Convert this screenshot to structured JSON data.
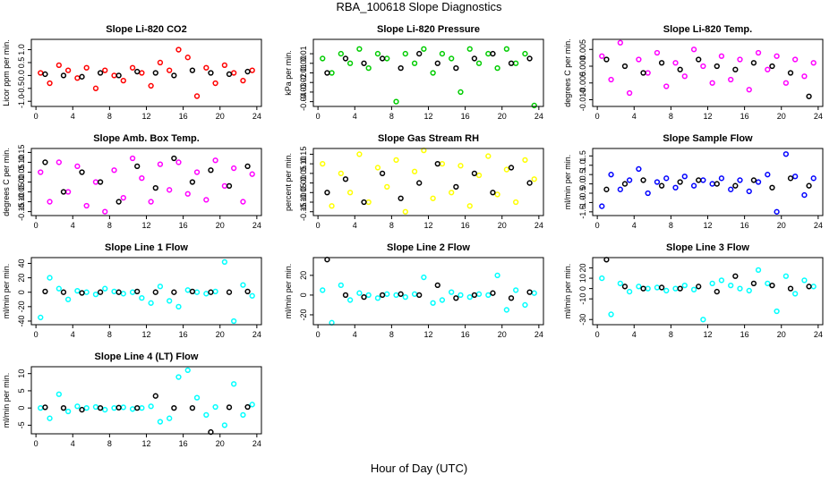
{
  "page": {
    "title": "RBA_100618  Slope Diagnostics",
    "xlabel": "Hour of Day (UTC)"
  },
  "chart_data": [
    {
      "type": "scatter",
      "title": "Slope Li-820 CO2",
      "ylabel": "Licor ppm per min.",
      "xlim": [
        -0.5,
        24.5
      ],
      "xticks": [
        0,
        4,
        8,
        12,
        16,
        20,
        24
      ],
      "ylim": [
        -1.2,
        1.4
      ],
      "yticks": [
        {
          "value": -1,
          "label": "-1.0"
        },
        -0.5,
        {
          "value": 0,
          "label": "0.0"
        },
        0.5,
        {
          "value": 1,
          "label": "1.0"
        }
      ],
      "series": [
        {
          "color": "#ff0000",
          "x": [
            0.5,
            1.5,
            2.5,
            3.5,
            4.5,
            5.5,
            6.5,
            7.5,
            8.5,
            9.5,
            10.5,
            11.5,
            12.5,
            13.5,
            14.5,
            15.5,
            16.5,
            17.5,
            18.5,
            19.5,
            20.5,
            21.5,
            22.5,
            23.5
          ],
          "values": [
            0.1,
            -0.3,
            0.4,
            0.2,
            -0.1,
            0.3,
            -0.5,
            0.2,
            0.0,
            -0.2,
            0.3,
            0.1,
            -0.4,
            0.5,
            0.2,
            1.0,
            0.7,
            -0.8,
            0.3,
            -0.3,
            0.4,
            0.1,
            -0.2,
            0.2
          ]
        },
        {
          "color": "#000000",
          "x": [
            1,
            3,
            5,
            7,
            9,
            11,
            13,
            15,
            17,
            19,
            21,
            23
          ],
          "values": [
            0.05,
            0.0,
            -0.05,
            0.1,
            0.0,
            0.15,
            0.1,
            0.0,
            0.2,
            0.1,
            0.05,
            0.15
          ]
        }
      ]
    },
    {
      "type": "scatter",
      "title": "Slope Li-820 Pressure",
      "ylabel": "kPa per min.",
      "xlim": [
        -0.5,
        24.5
      ],
      "xticks": [
        0,
        4,
        8,
        12,
        16,
        20,
        24
      ],
      "ylim": [
        -0.045,
        0.025
      ],
      "yticks": [
        -0.04,
        -0.03,
        -0.02,
        -0.01,
        {
          "value": 0,
          "label": "0.00"
        },
        0.01
      ],
      "series": [
        {
          "color": "#00cc00",
          "x": [
            0.5,
            1.5,
            2.5,
            3.5,
            4.5,
            5.5,
            6.5,
            7.5,
            8.5,
            9.5,
            10.5,
            11.5,
            12.5,
            13.5,
            14.5,
            15.5,
            16.5,
            17.5,
            18.5,
            19.5,
            20.5,
            21.5,
            22.5,
            23.5
          ],
          "values": [
            0.005,
            -0.01,
            0.01,
            0.0,
            0.015,
            -0.005,
            0.01,
            0.005,
            -0.04,
            0.01,
            0.0,
            0.015,
            -0.01,
            0.01,
            0.005,
            -0.03,
            0.015,
            0.0,
            0.01,
            -0.005,
            0.015,
            0.0,
            0.01,
            -0.044
          ]
        },
        {
          "color": "#000000",
          "x": [
            1,
            3,
            5,
            7,
            9,
            11,
            13,
            15,
            17,
            19,
            21,
            23
          ],
          "values": [
            -0.01,
            0.005,
            0.0,
            0.005,
            -0.005,
            0.01,
            0.0,
            -0.005,
            0.005,
            0.01,
            0.0,
            0.005
          ]
        }
      ]
    },
    {
      "type": "scatter",
      "title": "Slope Li-820 Temp.",
      "ylabel": "degrees C per min.",
      "xlim": [
        -0.5,
        24.5
      ],
      "xticks": [
        0,
        4,
        8,
        12,
        16,
        20,
        24
      ],
      "ylim": [
        -0.012,
        0.008
      ],
      "yticks": [
        {
          "value": -0.01,
          "label": "-0.010"
        },
        -0.005,
        {
          "value": 0,
          "label": "0.000"
        },
        0.005
      ],
      "series": [
        {
          "color": "#ff00ff",
          "x": [
            0.5,
            1.5,
            2.5,
            3.5,
            4.5,
            5.5,
            6.5,
            7.5,
            8.5,
            9.5,
            10.5,
            11.5,
            12.5,
            13.5,
            14.5,
            15.5,
            16.5,
            17.5,
            18.5,
            19.5,
            20.5,
            21.5,
            22.5,
            23.5
          ],
          "values": [
            0.003,
            -0.004,
            0.007,
            -0.008,
            0.002,
            -0.002,
            0.004,
            -0.006,
            0.001,
            -0.003,
            0.005,
            0.0,
            -0.005,
            0.003,
            -0.004,
            0.002,
            -0.007,
            0.004,
            -0.001,
            0.003,
            -0.005,
            0.002,
            -0.003,
            0.001
          ]
        },
        {
          "color": "#000000",
          "x": [
            1,
            3,
            5,
            7,
            9,
            11,
            13,
            15,
            17,
            19,
            21,
            23
          ],
          "values": [
            0.002,
            0.0,
            -0.002,
            0.001,
            -0.001,
            0.002,
            0.0,
            -0.001,
            0.001,
            0.0,
            -0.002,
            -0.009
          ]
        }
      ]
    },
    {
      "type": "scatter",
      "title": "Slope Amb. Box Temp.",
      "ylabel": "degrees C per min.",
      "xlim": [
        -0.5,
        24.5
      ],
      "xticks": [
        0,
        4,
        8,
        12,
        16,
        20,
        24
      ],
      "ylim": [
        -0.17,
        0.17
      ],
      "yticks": [
        -0.15,
        {
          "value": -0.1,
          "label": "-0.10"
        },
        -0.05,
        {
          "value": 0,
          "label": "0.00"
        },
        0.05,
        {
          "value": 0.1,
          "label": "0.10"
        },
        0.15
      ],
      "series": [
        {
          "color": "#ff00ff",
          "x": [
            0.5,
            1.5,
            2.5,
            3.5,
            4.5,
            5.5,
            6.5,
            7.5,
            8.5,
            9.5,
            10.5,
            11.5,
            12.5,
            13.5,
            14.5,
            15.5,
            16.5,
            17.5,
            18.5,
            19.5,
            20.5,
            21.5,
            22.5,
            23.5
          ],
          "values": [
            0.05,
            -0.1,
            0.1,
            -0.05,
            0.08,
            -0.12,
            0.0,
            -0.15,
            0.06,
            -0.08,
            0.12,
            0.02,
            -0.1,
            0.09,
            -0.04,
            0.1,
            -0.06,
            0.05,
            -0.09,
            0.11,
            -0.02,
            0.07,
            -0.1,
            0.04
          ]
        },
        {
          "color": "#000000",
          "x": [
            1,
            3,
            5,
            7,
            9,
            11,
            13,
            15,
            17,
            19,
            21,
            23
          ],
          "values": [
            0.1,
            -0.05,
            0.05,
            0.0,
            -0.1,
            0.08,
            -0.03,
            0.12,
            0.0,
            0.06,
            -0.02,
            0.08
          ]
        }
      ]
    },
    {
      "type": "scatter",
      "title": "Slope Gas Stream RH",
      "ylabel": "percent per min.",
      "xlim": [
        -0.5,
        24.5
      ],
      "xticks": [
        0,
        4,
        8,
        12,
        16,
        20,
        24
      ],
      "ylim": [
        -0.17,
        0.18
      ],
      "yticks": [
        -0.15,
        {
          "value": -0.1,
          "label": "-0.10"
        },
        -0.05,
        {
          "value": 0,
          "label": "0.00"
        },
        0.05,
        {
          "value": 0.1,
          "label": "0.10"
        },
        0.15
      ],
      "series": [
        {
          "color": "#ffff00",
          "x": [
            0.5,
            1.5,
            2.5,
            3.5,
            4.5,
            5.5,
            6.5,
            7.5,
            8.5,
            9.5,
            10.5,
            11.5,
            12.5,
            13.5,
            14.5,
            15.5,
            16.5,
            17.5,
            18.5,
            19.5,
            20.5,
            21.5,
            22.5,
            23.5
          ],
          "values": [
            0.1,
            -0.12,
            0.05,
            -0.05,
            0.15,
            -0.1,
            0.08,
            -0.02,
            0.12,
            -0.15,
            0.06,
            0.17,
            -0.08,
            0.1,
            -0.05,
            0.09,
            -0.12,
            0.04,
            0.14,
            -0.06,
            0.07,
            -0.1,
            0.12,
            0.02
          ]
        },
        {
          "color": "#000000",
          "x": [
            1,
            3,
            5,
            7,
            9,
            11,
            13,
            15,
            17,
            19,
            21,
            23
          ],
          "values": [
            -0.05,
            0.02,
            -0.1,
            0.05,
            -0.08,
            0.0,
            0.1,
            -0.02,
            0.05,
            -0.05,
            0.08,
            0.0
          ]
        }
      ]
    },
    {
      "type": "scatter",
      "title": "Slope Sample Flow",
      "ylabel": "ml/min per min.",
      "xlim": [
        -0.5,
        24.5
      ],
      "xticks": [
        0,
        4,
        8,
        12,
        16,
        20,
        24
      ],
      "ylim": [
        -1.7,
        1.9
      ],
      "yticks": [
        -1.5,
        {
          "value": -1,
          "label": "-1.0"
        },
        -0.5,
        {
          "value": 0,
          "label": "0.0"
        },
        0.5,
        {
          "value": 1,
          "label": "1.0"
        },
        1.5
      ],
      "series": [
        {
          "color": "#0000ff",
          "x": [
            0.5,
            1.5,
            2.5,
            3.5,
            4.5,
            5.5,
            6.5,
            7.5,
            8.5,
            9.5,
            10.5,
            11.5,
            12.5,
            13.5,
            14.5,
            15.5,
            16.5,
            17.5,
            18.5,
            19.5,
            20.5,
            21.5,
            22.5,
            23.5
          ],
          "values": [
            -1.2,
            0.5,
            -0.3,
            0.2,
            0.8,
            -0.5,
            0.1,
            0.3,
            -0.2,
            0.4,
            -0.1,
            0.2,
            0.0,
            0.3,
            -0.3,
            0.2,
            -0.4,
            0.1,
            0.5,
            -1.5,
            1.6,
            0.4,
            -0.6,
            0.3
          ]
        },
        {
          "color": "#000000",
          "x": [
            1,
            3,
            5,
            7,
            9,
            11,
            13,
            15,
            17,
            19,
            21,
            23
          ],
          "values": [
            -0.3,
            0.0,
            0.2,
            -0.1,
            0.1,
            0.2,
            0.0,
            -0.1,
            0.2,
            -0.2,
            0.3,
            -0.1
          ]
        }
      ]
    },
    {
      "type": "scatter",
      "title": "Slope Line 1 Flow",
      "ylabel": "ml/min per min.",
      "xlim": [
        -0.5,
        24.5
      ],
      "xticks": [
        0,
        4,
        8,
        12,
        16,
        20,
        24
      ],
      "ylim": [
        -45,
        48
      ],
      "yticks": [
        -40,
        -20,
        0,
        20,
        40
      ],
      "series": [
        {
          "color": "#00ffff",
          "x": [
            0.5,
            1.5,
            2.5,
            3.5,
            4.5,
            5.5,
            6.5,
            7.5,
            8.5,
            9.5,
            10.5,
            11.5,
            12.5,
            13.5,
            14.5,
            15.5,
            16.5,
            17.5,
            18.5,
            19.5,
            20.5,
            21.5,
            22.5,
            23.5
          ],
          "values": [
            -35,
            20,
            5,
            -10,
            2,
            0,
            -3,
            5,
            1,
            -2,
            0,
            -8,
            -15,
            8,
            -12,
            -20,
            3,
            0,
            -2,
            1,
            42,
            -40,
            10,
            -5
          ]
        },
        {
          "color": "#000000",
          "x": [
            1,
            3,
            5,
            7,
            9,
            11,
            13,
            15,
            17,
            19,
            21,
            23
          ],
          "values": [
            1,
            0,
            -1,
            0,
            0,
            1,
            0,
            0,
            1,
            0,
            0,
            1
          ]
        }
      ]
    },
    {
      "type": "scatter",
      "title": "Slope Line 2 Flow",
      "ylabel": "ml/min per min.",
      "xlim": [
        -0.5,
        24.5
      ],
      "xticks": [
        0,
        4,
        8,
        12,
        16,
        20,
        24
      ],
      "ylim": [
        -30,
        38
      ],
      "yticks": [
        -20,
        0,
        20
      ],
      "series": [
        {
          "color": "#00ffff",
          "x": [
            0.5,
            1.5,
            2.5,
            3.5,
            4.5,
            5.5,
            6.5,
            7.5,
            8.5,
            9.5,
            10.5,
            11.5,
            12.5,
            13.5,
            14.5,
            15.5,
            16.5,
            17.5,
            18.5,
            19.5,
            20.5,
            21.5,
            22.5,
            23.5
          ],
          "values": [
            5,
            -28,
            10,
            -5,
            2,
            0,
            -3,
            1,
            0,
            -2,
            1,
            18,
            -8,
            -5,
            3,
            0,
            -2,
            1,
            0,
            20,
            -15,
            5,
            -10,
            2
          ]
        },
        {
          "color": "#000000",
          "x": [
            1,
            3,
            5,
            7,
            9,
            11,
            13,
            15,
            17,
            19,
            21,
            23
          ],
          "values": [
            36,
            0,
            -2,
            0,
            1,
            0,
            10,
            -3,
            0,
            2,
            -3,
            3
          ]
        }
      ]
    },
    {
      "type": "scatter",
      "title": "Slope Line 3 Flow",
      "ylabel": "ml/min per min.",
      "xlim": [
        -0.5,
        24.5
      ],
      "xticks": [
        0,
        4,
        8,
        12,
        16,
        20,
        24
      ],
      "ylim": [
        -35,
        30
      ],
      "yticks": [
        -30,
        -10,
        0,
        10,
        20
      ],
      "series": [
        {
          "color": "#00ffff",
          "x": [
            0.5,
            1.5,
            2.5,
            3.5,
            4.5,
            5.5,
            6.5,
            7.5,
            8.5,
            9.5,
            10.5,
            11.5,
            12.5,
            13.5,
            14.5,
            15.5,
            16.5,
            17.5,
            18.5,
            19.5,
            20.5,
            21.5,
            22.5,
            23.5
          ],
          "values": [
            10,
            -25,
            5,
            -3,
            2,
            0,
            1,
            -2,
            0,
            3,
            -1,
            -30,
            5,
            8,
            3,
            0,
            -2,
            18,
            5,
            -22,
            12,
            -5,
            8,
            2
          ]
        },
        {
          "color": "#000000",
          "x": [
            1,
            3,
            5,
            7,
            9,
            11,
            13,
            15,
            17,
            19,
            21,
            23
          ],
          "values": [
            28,
            2,
            0,
            1,
            0,
            2,
            -3,
            12,
            5,
            3,
            0,
            2
          ]
        }
      ]
    },
    {
      "type": "scatter",
      "title": "Slope Line 4 (LT) Flow",
      "ylabel": "ml/min per min.",
      "xlim": [
        -0.5,
        24.5
      ],
      "xticks": [
        0,
        4,
        8,
        12,
        16,
        20,
        24
      ],
      "ylim": [
        -7.5,
        12
      ],
      "yticks": [
        -5,
        0,
        5,
        10
      ],
      "series": [
        {
          "color": "#00ffff",
          "x": [
            0.5,
            1.5,
            2.5,
            3.5,
            4.5,
            5.5,
            6.5,
            7.5,
            8.5,
            9.5,
            10.5,
            11.5,
            12.5,
            13.5,
            14.5,
            15.5,
            16.5,
            17.5,
            18.5,
            19.5,
            20.5,
            21.5,
            22.5,
            23.5
          ],
          "values": [
            0,
            -3,
            4,
            -1,
            0.5,
            0,
            0.3,
            -0.5,
            0,
            0.2,
            -0.3,
            0,
            0.5,
            -4,
            -3,
            9,
            11,
            3,
            -2,
            0.3,
            -5,
            7,
            -2,
            1
          ]
        },
        {
          "color": "#000000",
          "x": [
            1,
            3,
            5,
            7,
            9,
            11,
            13,
            15,
            17,
            19,
            21,
            23
          ],
          "values": [
            0.2,
            0,
            -0.5,
            0,
            0.1,
            0,
            3.5,
            0,
            0,
            -7,
            0.2,
            0.3
          ]
        }
      ]
    }
  ]
}
